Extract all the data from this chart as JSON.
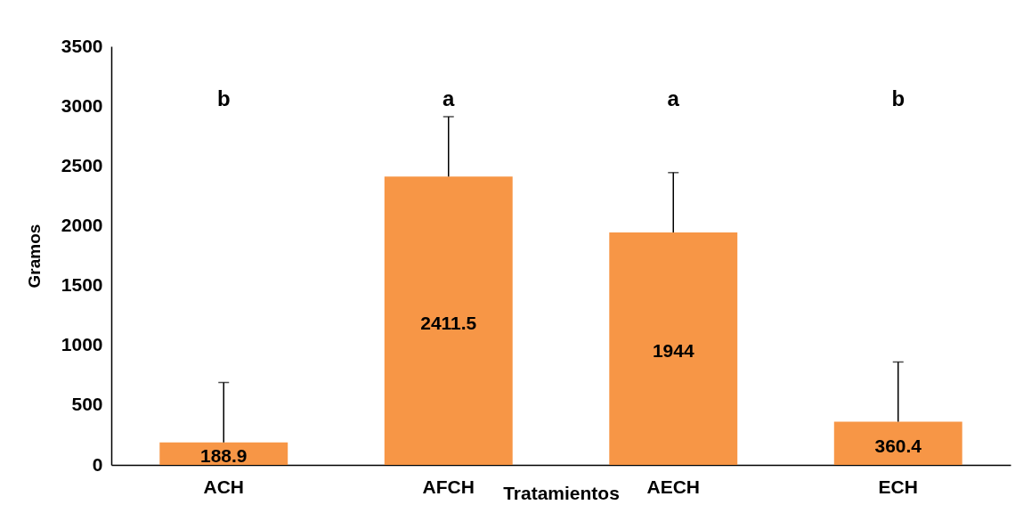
{
  "chart_data": {
    "type": "bar",
    "xlabel": "Tratamientos",
    "ylabel": "Gramos",
    "categories": [
      "ACH",
      "AFCH",
      "AECH",
      "ECH"
    ],
    "values": [
      188.9,
      2411.5,
      1944,
      360.4
    ],
    "color": "#f79646",
    "errors": [
      [
        188.9,
        688.9
      ],
      [
        2411.5,
        2911.5
      ],
      [
        1944,
        2444
      ],
      [
        360.4,
        860.4
      ]
    ],
    "ylim": [
      0,
      3500
    ],
    "yticks": [
      0,
      500,
      1000,
      1500,
      2000,
      2500,
      3000,
      3500
    ],
    "grid": false,
    "data_labels": true,
    "annotations": [
      "b",
      "a",
      "a",
      "b"
    ]
  }
}
